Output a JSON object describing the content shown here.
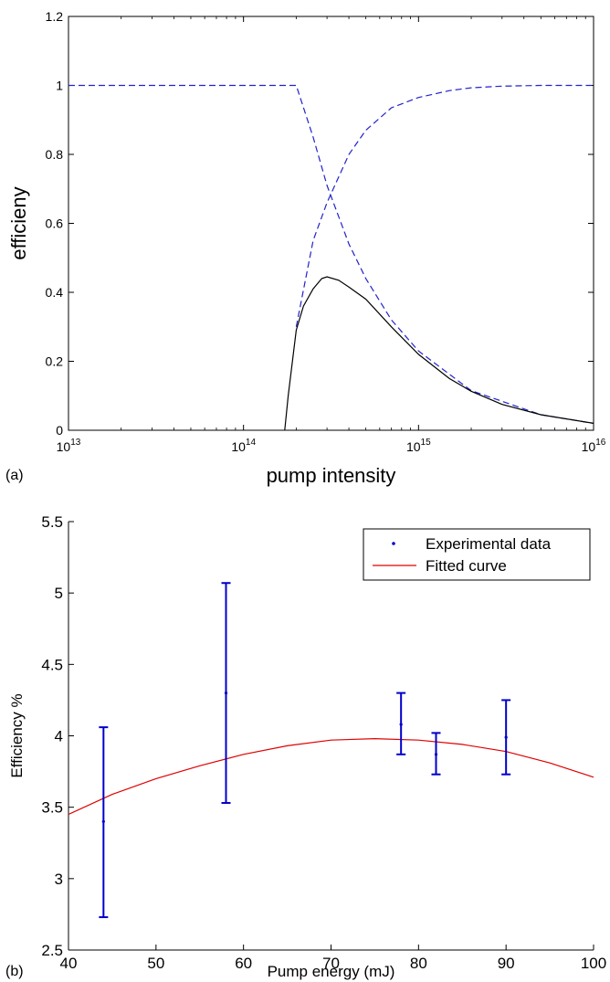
{
  "colors": {
    "axis": "#000000",
    "transmission": "#2222cc",
    "efficiency_curve": "#000000",
    "data_points": "#0000cc",
    "fit": "#e00000"
  },
  "chart_data": [
    {
      "panel_label": "(a)",
      "type": "line",
      "xlabel": "pump intensity",
      "ylabel": "efficieny",
      "xscale": "log",
      "xlim": [
        10000000000000.0,
        1e+16
      ],
      "ylim": [
        0,
        1.2
      ],
      "x_tick_labels": [
        {
          "base": "10",
          "exp": "13",
          "value": 10000000000000.0
        },
        {
          "base": "10",
          "exp": "14",
          "value": 100000000000000.0
        },
        {
          "base": "10",
          "exp": "15",
          "value": 1000000000000000.0
        },
        {
          "base": "10",
          "exp": "16",
          "value": 1e+16
        }
      ],
      "y_ticks": [
        "0",
        "0.2",
        "0.4",
        "0.6",
        "0.8",
        "1",
        "1.2"
      ],
      "grid": false,
      "legend": "none",
      "series": [
        {
          "style": "dashed",
          "color": "#2222cc",
          "x": [
            10000000000000.0,
            200000000000000.0,
            250000000000000.0,
            300000000000000.0,
            400000000000000.0,
            500000000000000.0,
            700000000000000.0,
            1000000000000000.0,
            2000000000000000.0,
            5000000000000000.0,
            1e+16
          ],
          "y": [
            1.0,
            1.0,
            0.85,
            0.71,
            0.54,
            0.44,
            0.32,
            0.23,
            0.115,
            0.045,
            0.02
          ]
        },
        {
          "style": "dashed",
          "color": "#2222cc",
          "x": [
            200000000000000.0,
            250000000000000.0,
            300000000000000.0,
            400000000000000.0,
            500000000000000.0,
            700000000000000.0,
            1000000000000000.0,
            1500000000000000.0,
            2000000000000000.0,
            3000000000000000.0,
            5000000000000000.0,
            1e+16
          ],
          "y": [
            0.3,
            0.55,
            0.66,
            0.8,
            0.87,
            0.935,
            0.965,
            0.985,
            0.993,
            0.998,
            1.0,
            1.0
          ]
        },
        {
          "style": "solid",
          "color": "#000000",
          "x": [
            172000000000000.0,
            180000000000000.0,
            200000000000000.0,
            220000000000000.0,
            250000000000000.0,
            280000000000000.0,
            300000000000000.0,
            350000000000000.0,
            400000000000000.0,
            500000000000000.0,
            700000000000000.0,
            1000000000000000.0,
            1500000000000000.0,
            2000000000000000.0,
            3000000000000000.0,
            5000000000000000.0,
            1e+16
          ],
          "y": [
            0.0,
            0.1,
            0.29,
            0.36,
            0.41,
            0.44,
            0.445,
            0.435,
            0.415,
            0.38,
            0.3,
            0.22,
            0.15,
            0.113,
            0.075,
            0.045,
            0.02
          ]
        }
      ]
    },
    {
      "panel_label": "(b)",
      "type": "scatter",
      "xlabel": "Pump energy (mJ)",
      "ylabel": "Efficiency %",
      "xlim": [
        40,
        100
      ],
      "ylim": [
        2.5,
        5.5
      ],
      "x_ticks": [
        "40",
        "50",
        "60",
        "70",
        "80",
        "90",
        "100"
      ],
      "y_ticks": [
        "2.5",
        "3",
        "3.5",
        "4",
        "4.5",
        "5",
        "5.5"
      ],
      "grid": false,
      "legend": "top-right",
      "series": [
        {
          "name": "Experimental data",
          "style": "errorbar",
          "color": "#0000cc",
          "points": [
            {
              "x": 44,
              "y": 3.4,
              "low": 2.73,
              "high": 4.06
            },
            {
              "x": 58,
              "y": 4.3,
              "low": 3.53,
              "high": 5.07
            },
            {
              "x": 78,
              "y": 4.08,
              "low": 3.87,
              "high": 4.3
            },
            {
              "x": 82,
              "y": 3.87,
              "low": 3.73,
              "high": 4.02
            },
            {
              "x": 90,
              "y": 3.99,
              "low": 3.73,
              "high": 4.25
            }
          ]
        },
        {
          "name": "Fitted curve",
          "style": "line",
          "color": "#e00000",
          "x": [
            40,
            45,
            50,
            55,
            60,
            65,
            70,
            75,
            80,
            85,
            90,
            95,
            100
          ],
          "y": [
            3.45,
            3.59,
            3.7,
            3.79,
            3.87,
            3.93,
            3.97,
            3.98,
            3.97,
            3.94,
            3.89,
            3.81,
            3.71
          ]
        }
      ]
    }
  ]
}
